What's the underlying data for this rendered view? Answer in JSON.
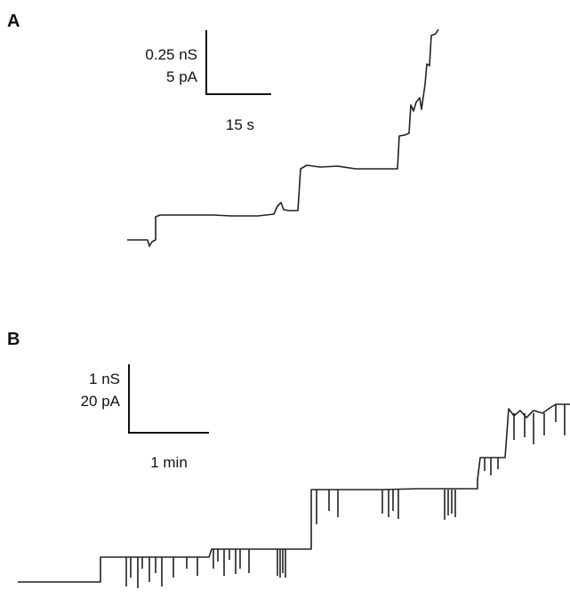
{
  "panels": [
    {
      "label": "A",
      "scale_bar": {
        "y_labels": [
          "0.25 nS",
          "5 pA"
        ],
        "x_label": "15 s"
      }
    },
    {
      "label": "B",
      "scale_bar": {
        "y_labels": [
          "1 nS",
          "20 pA"
        ],
        "x_label": "1 min"
      }
    }
  ]
}
